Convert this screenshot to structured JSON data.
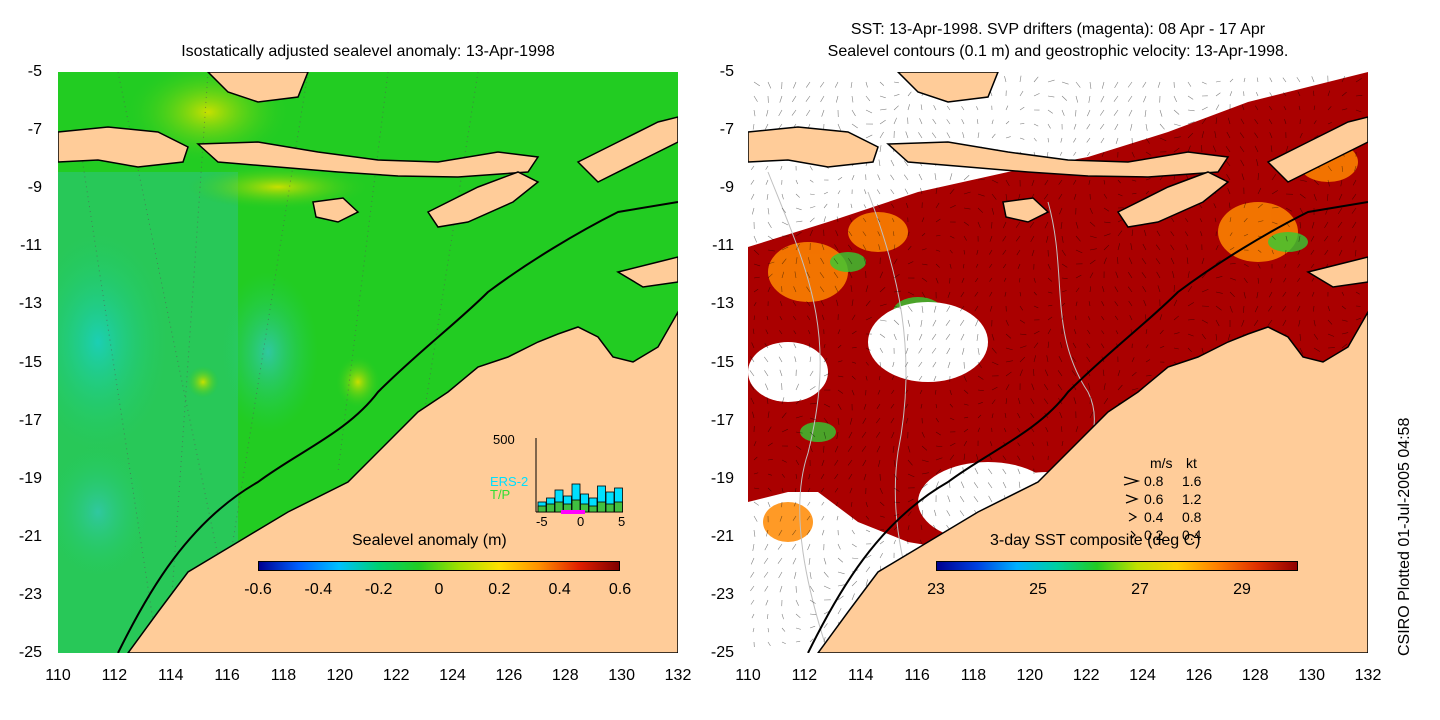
{
  "left_panel": {
    "title": "Isostatically adjusted sealevel anomaly: 13-Apr-1998",
    "colorbar": {
      "label": "Sealevel anomaly (m)",
      "ticks": [
        "-0.6",
        "-0.4",
        "-0.2",
        "0",
        "0.2",
        "0.4",
        "0.6"
      ]
    },
    "histogram": {
      "ymax_label": "500",
      "x_ticks": [
        "-5",
        "0",
        "5"
      ],
      "legend": [
        "ERS-2",
        "T/P"
      ],
      "colors": {
        "ers2": "#00e0ff",
        "tp": "#40c040",
        "range": "#ff00ff"
      }
    }
  },
  "right_panel": {
    "title_line1": "SST: 13-Apr-1998. SVP drifters (magenta): 08 Apr - 17 Apr",
    "title_line2": "Sealevel contours (0.1 m) and geostrophic velocity: 13-Apr-1998.",
    "colorbar": {
      "label": "3-day SST composite (deg C)",
      "ticks": [
        "23",
        "25",
        "27",
        "29"
      ]
    },
    "velocity_legend": {
      "header_ms": "m/s",
      "header_kt": "kt",
      "rows": [
        {
          "ms": "0.8",
          "kt": "1.6"
        },
        {
          "ms": "0.6",
          "kt": "1.2"
        },
        {
          "ms": "0.4",
          "kt": "0.8"
        },
        {
          "ms": "0.2",
          "kt": "0.4"
        }
      ]
    }
  },
  "axes": {
    "y_ticks": [
      "-5",
      "-7",
      "-9",
      "-11",
      "-13",
      "-15",
      "-17",
      "-19",
      "-21",
      "-23",
      "-25"
    ],
    "x_ticks": [
      "110",
      "112",
      "114",
      "116",
      "118",
      "120",
      "122",
      "124",
      "126",
      "128",
      "130",
      "132"
    ]
  },
  "side_note": "CSIRO Plotted 01-Jul-2005 04:58",
  "colors": {
    "land": "#ffcc99",
    "ocean_sla": "#22cc22",
    "sst_warm": "#aa0000",
    "no_data": "#ffffff"
  }
}
